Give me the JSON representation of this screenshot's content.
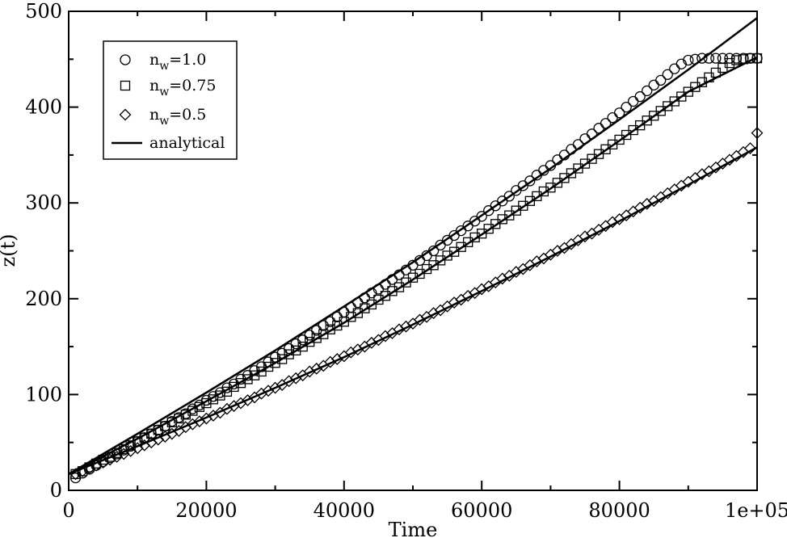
{
  "chart_data": {
    "type": "scatter",
    "title": "",
    "xlabel": "Time",
    "ylabel": "z(t)",
    "xlim": [
      0,
      100000
    ],
    "ylim": [
      0,
      500
    ],
    "grid": false,
    "legend_position": "top-left",
    "x_ticks": [
      0,
      20000,
      40000,
      60000,
      80000,
      100000
    ],
    "x_tick_labels": [
      "0",
      "20000",
      "40000",
      "60000",
      "80000",
      "1e+05"
    ],
    "y_ticks": [
      0,
      100,
      200,
      300,
      400,
      500
    ],
    "y_tick_labels": [
      "0",
      "100",
      "200",
      "300",
      "400",
      "500"
    ],
    "series": [
      {
        "name_base": "n",
        "name_sub": "w",
        "name_suffix": "=1.0",
        "marker": "circle",
        "x": [
          1000,
          2000,
          3000,
          4000,
          5000,
          6000,
          7000,
          8000,
          9000,
          10000,
          11000,
          12000,
          13000,
          14000,
          15000,
          16000,
          17000,
          18000,
          19000,
          20000,
          21000,
          22000,
          23000,
          24000,
          25000,
          26000,
          27000,
          28000,
          29000,
          30000,
          31000,
          32000,
          33000,
          34000,
          35000,
          36000,
          37000,
          38000,
          39000,
          40000,
          41000,
          42000,
          43000,
          44000,
          45000,
          46000,
          47000,
          48000,
          49000,
          50000,
          51000,
          52000,
          53000,
          54000,
          55000,
          56000,
          57000,
          58000,
          59000,
          60000,
          61000,
          62000,
          63000,
          64000,
          65000,
          66000,
          67000,
          68000,
          69000,
          70000,
          71000,
          72000,
          73000,
          74000,
          75000,
          76000,
          77000,
          78000,
          79000,
          80000,
          81000,
          82000,
          83000,
          84000,
          85000,
          86000,
          87000,
          88000,
          89000,
          90000,
          91000,
          92000,
          93000,
          94000,
          95000,
          96000,
          97000,
          98000,
          99000,
          100000
        ],
        "y": [
          13,
          18,
          22,
          26,
          30,
          34,
          38,
          42,
          46,
          51,
          55,
          59,
          63,
          67,
          72,
          76,
          80,
          85,
          89,
          94,
          98,
          102,
          107,
          111,
          116,
          120,
          125,
          129,
          134,
          139,
          143,
          148,
          153,
          157,
          162,
          167,
          172,
          176,
          181,
          186,
          191,
          196,
          201,
          206,
          210,
          215,
          220,
          225,
          230,
          235,
          240,
          245,
          250,
          256,
          261,
          266,
          271,
          276,
          281,
          286,
          292,
          297,
          302,
          307,
          313,
          318,
          323,
          329,
          334,
          339,
          345,
          350,
          356,
          361,
          367,
          372,
          378,
          383,
          389,
          394,
          400,
          406,
          411,
          417,
          423,
          428,
          434,
          440,
          445,
          449,
          450,
          451,
          451,
          451,
          451,
          451,
          451,
          451,
          451,
          451
        ]
      },
      {
        "name_base": "n",
        "name_sub": "w",
        "name_suffix": "=0.75",
        "marker": "square",
        "x": [
          1000,
          2000,
          3000,
          4000,
          5000,
          6000,
          7000,
          8000,
          9000,
          10000,
          11000,
          12000,
          13000,
          14000,
          15000,
          16000,
          17000,
          18000,
          19000,
          20000,
          21000,
          22000,
          23000,
          24000,
          25000,
          26000,
          27000,
          28000,
          29000,
          30000,
          31000,
          32000,
          33000,
          34000,
          35000,
          36000,
          37000,
          38000,
          39000,
          40000,
          41000,
          42000,
          43000,
          44000,
          45000,
          46000,
          47000,
          48000,
          49000,
          50000,
          51000,
          52000,
          53000,
          54000,
          55000,
          56000,
          57000,
          58000,
          59000,
          60000,
          61000,
          62000,
          63000,
          64000,
          65000,
          66000,
          67000,
          68000,
          69000,
          70000,
          71000,
          72000,
          73000,
          74000,
          75000,
          76000,
          77000,
          78000,
          79000,
          80000,
          81000,
          82000,
          83000,
          84000,
          85000,
          86000,
          87000,
          88000,
          89000,
          90000,
          91000,
          92000,
          93000,
          94000,
          95000,
          96000,
          97000,
          98000,
          99000,
          100000
        ],
        "y": [
          17,
          20,
          24,
          28,
          32,
          35,
          39,
          43,
          47,
          51,
          55,
          59,
          63,
          67,
          71,
          75,
          79,
          83,
          87,
          91,
          95,
          99,
          103,
          108,
          112,
          116,
          120,
          124,
          129,
          133,
          137,
          142,
          146,
          150,
          155,
          159,
          163,
          168,
          172,
          176,
          181,
          185,
          190,
          194,
          199,
          203,
          208,
          212,
          217,
          222,
          226,
          231,
          235,
          240,
          245,
          249,
          254,
          259,
          264,
          268,
          273,
          278,
          283,
          287,
          292,
          297,
          302,
          307,
          312,
          316,
          321,
          326,
          331,
          336,
          341,
          346,
          351,
          356,
          361,
          366,
          371,
          376,
          381,
          386,
          391,
          396,
          401,
          406,
          411,
          416,
          421,
          426,
          431,
          436,
          441,
          446,
          449,
          450,
          451,
          451
        ]
      },
      {
        "name_base": "n",
        "name_sub": "w",
        "name_suffix": "=0.5",
        "marker": "diamond",
        "x": [
          1000,
          2000,
          3000,
          4000,
          5000,
          6000,
          7000,
          8000,
          9000,
          10000,
          11000,
          12000,
          13000,
          14000,
          15000,
          16000,
          17000,
          18000,
          19000,
          20000,
          21000,
          22000,
          23000,
          24000,
          25000,
          26000,
          27000,
          28000,
          29000,
          30000,
          31000,
          32000,
          33000,
          34000,
          35000,
          36000,
          37000,
          38000,
          39000,
          40000,
          41000,
          42000,
          43000,
          44000,
          45000,
          46000,
          47000,
          48000,
          49000,
          50000,
          51000,
          52000,
          53000,
          54000,
          55000,
          56000,
          57000,
          58000,
          59000,
          60000,
          61000,
          62000,
          63000,
          64000,
          65000,
          66000,
          67000,
          68000,
          69000,
          70000,
          71000,
          72000,
          73000,
          74000,
          75000,
          76000,
          77000,
          78000,
          79000,
          80000,
          81000,
          82000,
          83000,
          84000,
          85000,
          86000,
          87000,
          88000,
          89000,
          90000,
          91000,
          92000,
          93000,
          94000,
          95000,
          96000,
          97000,
          98000,
          99000,
          100000
        ],
        "y": [
          17,
          20,
          23,
          26,
          29,
          32,
          35,
          38,
          41,
          44,
          47,
          50,
          53,
          56,
          59,
          62,
          66,
          69,
          72,
          75,
          78,
          81,
          85,
          88,
          91,
          94,
          97,
          101,
          104,
          107,
          110,
          114,
          117,
          120,
          124,
          127,
          130,
          134,
          137,
          140,
          144,
          147,
          150,
          154,
          157,
          161,
          164,
          168,
          171,
          174,
          178,
          181,
          185,
          188,
          192,
          196,
          199,
          203,
          206,
          210,
          213,
          217,
          221,
          224,
          228,
          231,
          235,
          239,
          242,
          246,
          250,
          253,
          257,
          261,
          265,
          268,
          272,
          276,
          280,
          283,
          287,
          291,
          295,
          299,
          302,
          306,
          310,
          314,
          318,
          322,
          326,
          330,
          333,
          337,
          341,
          345,
          349,
          353,
          357,
          373
        ]
      }
    ],
    "analytical": {
      "name": "analytical",
      "curves": [
        {
          "x": [
            0,
            10000,
            20000,
            30000,
            40000,
            50000,
            60000,
            70000,
            80000,
            90000,
            100000
          ],
          "y": [
            17,
            59,
            102,
            146,
            192,
            238,
            287,
            336,
            387,
            439,
            493
          ]
        },
        {
          "x": [
            0,
            10000,
            20000,
            30000,
            40000,
            50000,
            60000,
            70000,
            80000,
            90000,
            100000
          ],
          "y": [
            17,
            54,
            93,
            133,
            175,
            220,
            267,
            315,
            365,
            416,
            452
          ]
        },
        {
          "x": [
            0,
            10000,
            20000,
            30000,
            40000,
            50000,
            60000,
            70000,
            80000,
            90000,
            100000
          ],
          "y": [
            17,
            46,
            76,
            107,
            139,
            173,
            208,
            244,
            281,
            319,
            358
          ]
        }
      ]
    }
  }
}
